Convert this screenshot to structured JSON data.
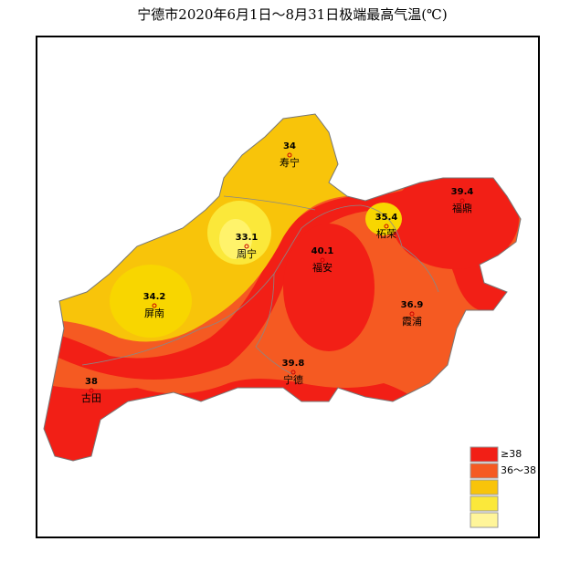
{
  "title": "宁德市2020年6月1日～8月31日极端最高气温(℃)",
  "stations": [
    {
      "name": "寿宁",
      "value": 34
    },
    {
      "name": "周宁",
      "value": 33.1
    },
    {
      "name": "屏南",
      "value": 34.2
    },
    {
      "name": "福安",
      "value": 40.1
    },
    {
      "name": "柘荣",
      "value": 35.4
    },
    {
      "name": "福鼎",
      "value": 39.4
    },
    {
      "name": "霞浦",
      "value": 36.9
    },
    {
      "name": "宁德",
      "value": 39.8
    },
    {
      "name": "古田",
      "value": 38
    }
  ],
  "legend": [
    "≥38",
    "36～38"
  ]
}
